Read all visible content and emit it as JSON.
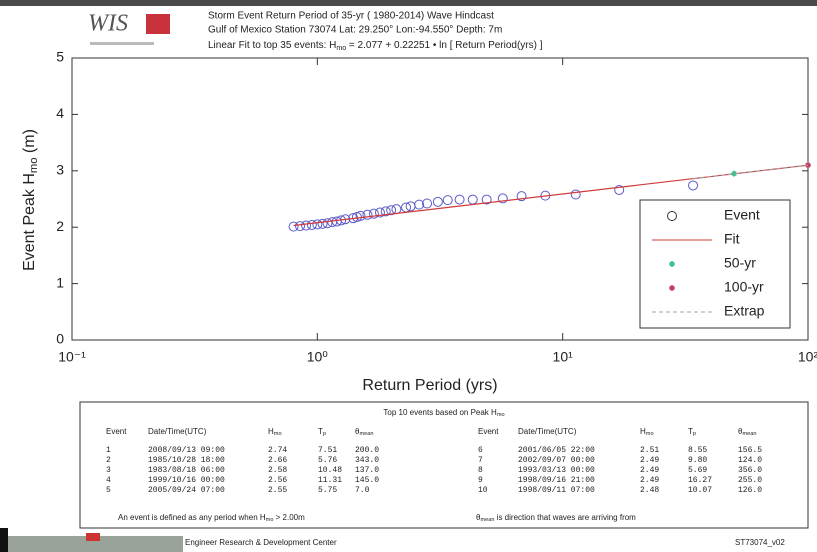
{
  "chart_data": {
    "type": "scatter",
    "logo": "WIS",
    "title": "Storm Event Return Period of 35-yr ( 1980-2014) Wave Hindcast",
    "subtitle": "Gulf of Mexico  Station 73074   Lat: 29.250°  Lon:-94.550°   Depth: 7m",
    "fit_text": [
      "Linear Fit to top 35 events:  H",
      "mo",
      " = 2.077 + 0.22251 • ln [ Return Period(yrs) ]"
    ],
    "x_label": "Return Period (yrs)",
    "y_label": [
      "Event Peak H",
      "mo",
      " (m)"
    ],
    "xlog": true,
    "xlim": [
      0.1,
      100
    ],
    "xticks": [
      {
        "value": 0.1,
        "label": "10⁻¹"
      },
      {
        "value": 1,
        "label": "10⁰"
      },
      {
        "value": 10,
        "label": "10¹"
      },
      {
        "value": 100,
        "label": "10²"
      }
    ],
    "ylim": [
      0,
      5
    ],
    "yticks": [
      0,
      1,
      2,
      3,
      4,
      5
    ],
    "legend": "lower right",
    "series": [
      {
        "name": "Event",
        "color": "#5a5ac8",
        "style": "marker",
        "x": [
          34,
          17,
          11.3,
          8.5,
          6.8,
          5.7,
          4.9,
          4.3,
          3.8,
          3.4,
          3.1,
          2.8,
          2.6,
          2.4,
          2.3,
          2.1,
          2.0,
          1.9,
          1.8,
          1.7,
          1.6,
          1.5,
          1.45,
          1.4,
          1.3,
          1.25,
          1.2,
          1.15,
          1.1,
          1.05,
          1.0,
          0.95,
          0.9,
          0.85,
          0.8
        ],
        "values": [
          2.74,
          2.66,
          2.58,
          2.56,
          2.55,
          2.51,
          2.49,
          2.49,
          2.49,
          2.48,
          2.45,
          2.42,
          2.4,
          2.37,
          2.35,
          2.32,
          2.3,
          2.28,
          2.26,
          2.24,
          2.22,
          2.2,
          2.18,
          2.16,
          2.14,
          2.12,
          2.1,
          2.09,
          2.07,
          2.06,
          2.05,
          2.04,
          2.03,
          2.02,
          2.01
        ]
      },
      {
        "name": "Fit",
        "color": "#d03a3a",
        "style": "line",
        "x": [
          0.8,
          100
        ],
        "values": [
          2.03,
          3.1
        ]
      },
      {
        "name": "50-yr",
        "color": "#3cc08a",
        "style": "star",
        "x": [
          50
        ],
        "values": [
          2.95
        ]
      },
      {
        "name": "100-yr",
        "color": "#c0406a",
        "style": "star",
        "x": [
          100
        ],
        "values": [
          3.1
        ]
      },
      {
        "name": "Extrap",
        "color": "#a0a0a0",
        "style": "dashed",
        "x": [
          34,
          100
        ],
        "values": [
          2.86,
          3.1
        ]
      }
    ]
  },
  "table": {
    "title": [
      "Top 10 events based on Peak H",
      "mo"
    ],
    "columns": [
      [
        "Event"
      ],
      [
        "Date/Time(UTC)"
      ],
      [
        "H",
        "mo"
      ],
      [
        "T",
        "p"
      ],
      [
        "θ",
        "mean"
      ]
    ],
    "rows": [
      [
        "1",
        "2008/09/13 09:00",
        "2.74",
        "7.51",
        "200.0"
      ],
      [
        "2",
        "1985/10/28 18:00",
        "2.66",
        "5.76",
        "343.0"
      ],
      [
        "3",
        "1983/08/18 06:00",
        "2.58",
        "10.48",
        "137.0"
      ],
      [
        "4",
        "1999/10/16 00:00",
        "2.56",
        "11.31",
        "145.0"
      ],
      [
        "5",
        "2005/09/24 07:00",
        "2.55",
        "5.75",
        "7.0"
      ],
      [
        "6",
        "2001/06/05 22:00",
        "2.51",
        "8.55",
        "156.5"
      ],
      [
        "7",
        "2002/09/07 00:00",
        "2.49",
        "9.80",
        "124.0"
      ],
      [
        "8",
        "1993/03/13 00:00",
        "2.49",
        "5.69",
        "356.0"
      ],
      [
        "9",
        "1998/09/16 21:00",
        "2.49",
        "16.27",
        "255.0"
      ],
      [
        "10",
        "1998/09/11 07:00",
        "2.48",
        "10.07",
        "126.0"
      ]
    ],
    "notes": [
      [
        "An event is defined as any period when H",
        "mo",
        " > 2.00m"
      ],
      [
        "θ",
        "mean",
        " is direction that waves are arriving from"
      ]
    ]
  },
  "footer": {
    "center": "Engineer Research & Development Center",
    "id": "ST73074_v02"
  }
}
